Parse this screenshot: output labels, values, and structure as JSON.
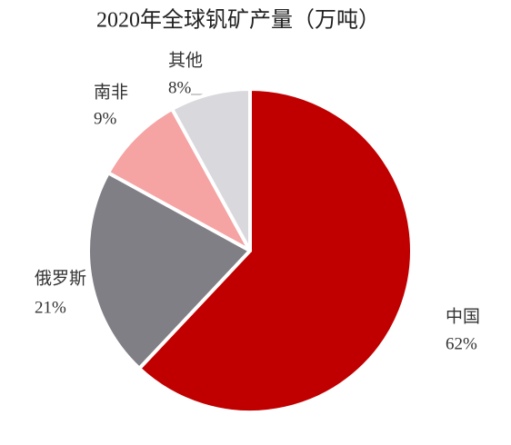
{
  "chart_data": {
    "type": "pie",
    "title": "2020年全球钒矿产量（万吨）",
    "categories": [
      "中国",
      "俄罗斯",
      "南非",
      "其他"
    ],
    "values": [
      62,
      21,
      9,
      8
    ],
    "value_labels": [
      "62%",
      "21%",
      "9%",
      "8%"
    ],
    "colors": [
      "#c00000",
      "#7f7f85",
      "#f5a3a3",
      "#d9d9dd"
    ]
  }
}
